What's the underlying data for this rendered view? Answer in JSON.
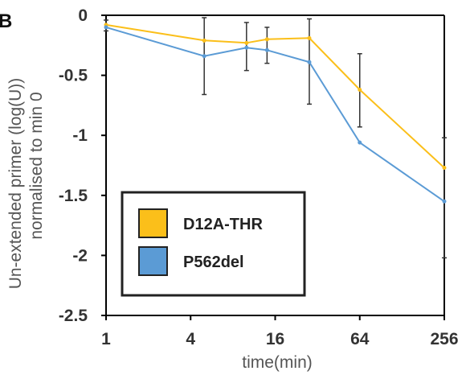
{
  "panel_label": "B",
  "chart_data": {
    "type": "line",
    "xlabel": "time(min)",
    "ylabel_line1": "Un-extended primer (log(U))",
    "ylabel_line2": "normalised to min 0",
    "x_scale": "log2",
    "xlim": [
      1,
      256
    ],
    "ylim": [
      -2.5,
      0
    ],
    "x_ticks": [
      {
        "value": 1,
        "label": "1"
      },
      {
        "value": 4,
        "label": "4"
      },
      {
        "value": 16,
        "label": "16"
      },
      {
        "value": 64,
        "label": "64"
      },
      {
        "value": 256,
        "label": "256"
      }
    ],
    "y_ticks": [
      {
        "value": 0,
        "label": "0"
      },
      {
        "value": -0.5,
        "label": "-0.5"
      },
      {
        "value": -1,
        "label": "-1"
      },
      {
        "value": -1.5,
        "label": "-1.5"
      },
      {
        "value": -2,
        "label": "-2"
      },
      {
        "value": -2.5,
        "label": "-2.5"
      }
    ],
    "grid": false,
    "legend_position": "bottom-left",
    "series": [
      {
        "name": "D12A-THR",
        "color": "#fbbf1a",
        "x": [
          1,
          5,
          10,
          14,
          28,
          64,
          256
        ],
        "y": [
          -0.08,
          -0.21,
          -0.23,
          -0.2,
          -0.19,
          -0.62,
          -1.27
        ],
        "error_low": [
          -0.13,
          -0.66,
          -0.46,
          -0.4,
          -0.74,
          -0.93,
          -2.02
        ],
        "error_high": [
          -0.04,
          -0.02,
          -0.06,
          -0.1,
          -0.03,
          -0.32,
          -1.02
        ]
      },
      {
        "name": "P562del",
        "color": "#5b9bd5",
        "x": [
          1,
          5,
          10,
          14,
          28,
          64,
          256
        ],
        "y": [
          -0.1,
          -0.34,
          -0.27,
          -0.29,
          -0.39,
          -1.06,
          -1.55
        ]
      }
    ]
  }
}
